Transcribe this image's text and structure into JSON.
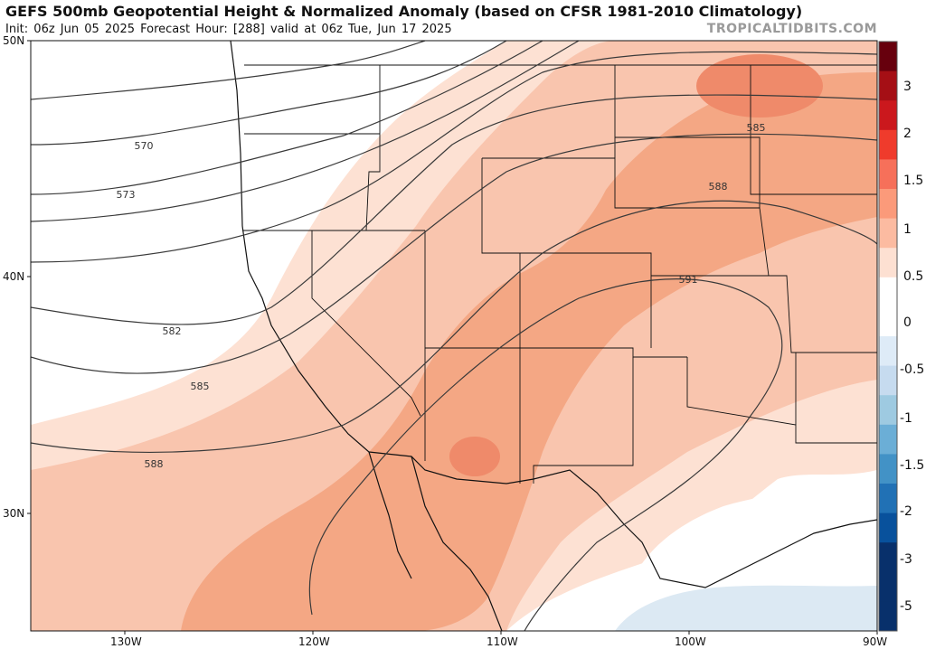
{
  "header": {
    "title": "GEFS 500mb Geopotential Height & Normalized Anomaly (based on CFSR 1981-2010 Climatology)",
    "subtitle": "Init: 06z Jun 05 2025   Forecast Hour: [288]   valid at 06z Tue, Jun 17 2025",
    "brand": "TROPICALTIDBITS.COM"
  },
  "axes": {
    "lat_labels": [
      "50N",
      "40N",
      "30N"
    ],
    "lon_labels": [
      "130W",
      "120W",
      "110W",
      "100W",
      "90W"
    ]
  },
  "contours": {
    "labels": [
      "570",
      "573",
      "582",
      "585",
      "588",
      "585",
      "588",
      "591"
    ]
  },
  "colorbar": {
    "labels": [
      "3",
      "2",
      "1.5",
      "1",
      "0.5",
      "0",
      "-0.5",
      "-1",
      "-1.5",
      "-2",
      "-3",
      "-5"
    ],
    "colors": [
      "#67000d",
      "#a50f15",
      "#cb181d",
      "#ef3b2c",
      "#f6705a",
      "#fb9a7a",
      "#fcbba1",
      "#fde0d2",
      "#ffffff",
      "#ffffff",
      "#deebf7",
      "#c6dbef",
      "#9ecae1",
      "#6baed6",
      "#4292c6",
      "#2171b5",
      "#08519c",
      "#08306b",
      "#08306b",
      "#08306b"
    ]
  },
  "colors": {
    "anomaly_strong": "#f4a784",
    "anomaly_med": "#f9c5ae",
    "anomaly_light": "#fde1d3",
    "anomaly_neg": "#dce9f3",
    "contour": "#3a3a3a",
    "border": "#111111"
  }
}
